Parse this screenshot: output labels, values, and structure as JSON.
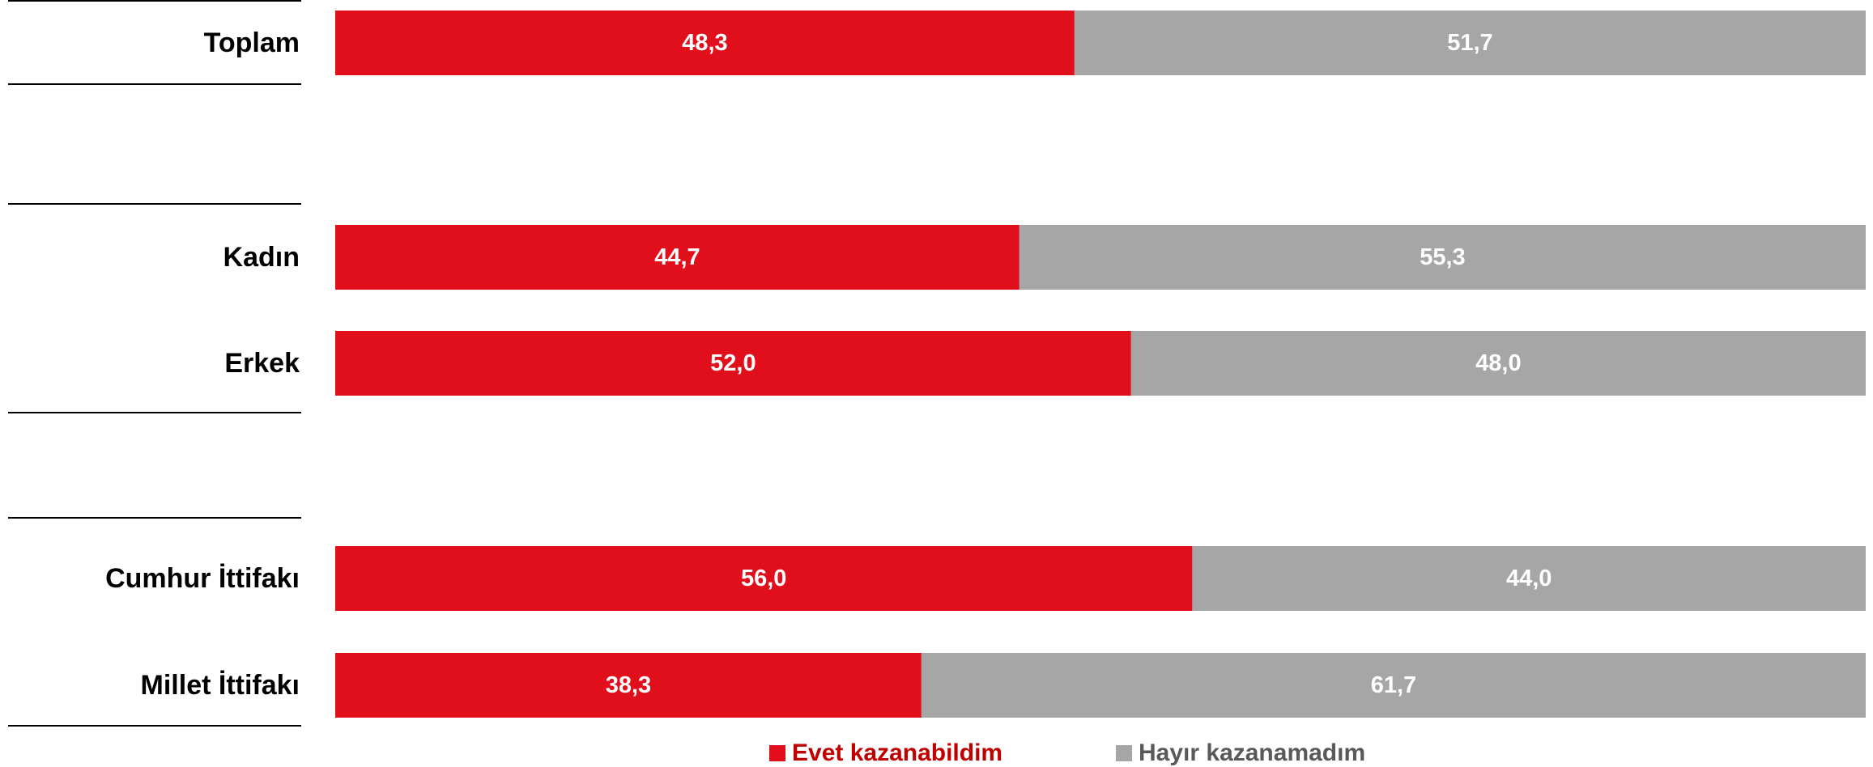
{
  "chart_data": {
    "type": "bar",
    "orientation": "horizontal",
    "stacked": true,
    "categories": [
      "Toplam",
      "Kadın",
      "Erkek",
      "Cumhur İttifakı",
      "Millet İttifakı"
    ],
    "groups": [
      [
        "Toplam"
      ],
      [
        "Kadın",
        "Erkek"
      ],
      [
        "Cumhur İttifakı",
        "Millet İttifakı"
      ]
    ],
    "series": [
      {
        "name": "Evet kazanabildim",
        "color": "#E10E1C",
        "values": [
          48.3,
          44.7,
          52.0,
          56.0,
          38.3
        ],
        "labels": [
          "48,3",
          "44,7",
          "52,0",
          "56,0",
          "38,3"
        ]
      },
      {
        "name": "Hayır kazanamadım",
        "color": "#A6A6A6",
        "values": [
          51.7,
          55.3,
          48.0,
          44.0,
          61.7
        ],
        "labels": [
          "51,7",
          "55,3",
          "48,0",
          "44,0",
          "61,7"
        ]
      }
    ],
    "xlim": [
      0,
      100
    ],
    "grid": false,
    "legend": "bottom-center",
    "title": "",
    "xlabel": "",
    "ylabel": ""
  }
}
